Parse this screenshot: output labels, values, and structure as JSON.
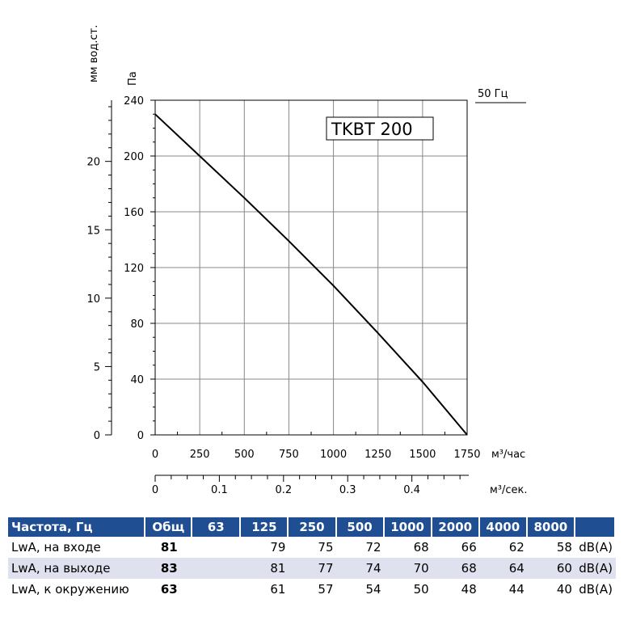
{
  "chart_data": {
    "type": "line",
    "title": "TKBT 200",
    "frequency_label": "50 Гц",
    "y_left_label": "мм вод.ст.",
    "y_right_label": "Па",
    "x_label_flow_hour": "м³/час",
    "x_label_flow_sec": "м³/сек.",
    "pa_range": [
      0,
      240
    ],
    "pa_ticks": [
      "0",
      "40",
      "80",
      "120",
      "160",
      "200",
      "240"
    ],
    "mm_ticks": [
      "0",
      "5",
      "10",
      "15",
      "20"
    ],
    "x_range": [
      0,
      1750
    ],
    "x_ticks": [
      "0",
      "250",
      "500",
      "750",
      "1000",
      "1250",
      "1500",
      "1750"
    ],
    "x2_ticks": [
      "0",
      "0.1",
      "0.2",
      "0.3",
      "0.4"
    ],
    "grid": true,
    "series": [
      {
        "name": "TKBT 200",
        "points": [
          [
            0,
            230
          ],
          [
            250,
            200
          ],
          [
            500,
            170
          ],
          [
            750,
            139
          ],
          [
            1000,
            107
          ],
          [
            1250,
            73
          ],
          [
            1500,
            38
          ],
          [
            1750,
            0
          ]
        ]
      }
    ]
  },
  "table": {
    "headers": [
      "Частота, Гц",
      "Общ",
      "63",
      "125",
      "250",
      "500",
      "1000",
      "2000",
      "4000",
      "8000",
      ""
    ],
    "rows": [
      {
        "label": "LwA, на входе",
        "total": "81",
        "values": [
          "",
          "79",
          "75",
          "72",
          "68",
          "66",
          "62",
          "58"
        ],
        "unit": "dB(A)"
      },
      {
        "label": "LwA, на выходе",
        "total": "83",
        "values": [
          "",
          "81",
          "77",
          "74",
          "70",
          "68",
          "64",
          "60"
        ],
        "unit": "dB(A)"
      },
      {
        "label": "LwA, к окружению",
        "total": "63",
        "values": [
          "",
          "61",
          "57",
          "54",
          "50",
          "48",
          "44",
          "40"
        ],
        "unit": "dB(A)"
      }
    ]
  }
}
